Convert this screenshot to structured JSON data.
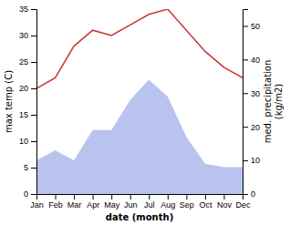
{
  "chart_data": {
    "type": "line",
    "categories": [
      "Jan",
      "Feb",
      "Mar",
      "Apr",
      "May",
      "Jun",
      "Jul",
      "Aug",
      "Sep",
      "Oct",
      "Nov",
      "Dec"
    ],
    "series": [
      {
        "type": "area",
        "axis": "y2",
        "color": "#b8c4ee",
        "values": [
          10,
          13,
          10,
          19,
          19,
          28,
          34,
          29,
          17,
          9,
          8,
          8
        ]
      },
      {
        "type": "line",
        "color": "#cc3333",
        "values": [
          20,
          22,
          28,
          31,
          30,
          32,
          34,
          35,
          31,
          27,
          24,
          22
        ]
      }
    ],
    "xlabel": "date (month)",
    "ylabel": "max temp (C)",
    "y2label": "med. precipitation\n(kg/m2)",
    "ylim": [
      0,
      35
    ],
    "yticks": [
      0,
      5,
      10,
      15,
      20,
      25,
      30,
      35
    ],
    "y2lim": [
      0,
      55
    ],
    "y2ticks": [
      0,
      10,
      20,
      30,
      40,
      50
    ]
  }
}
